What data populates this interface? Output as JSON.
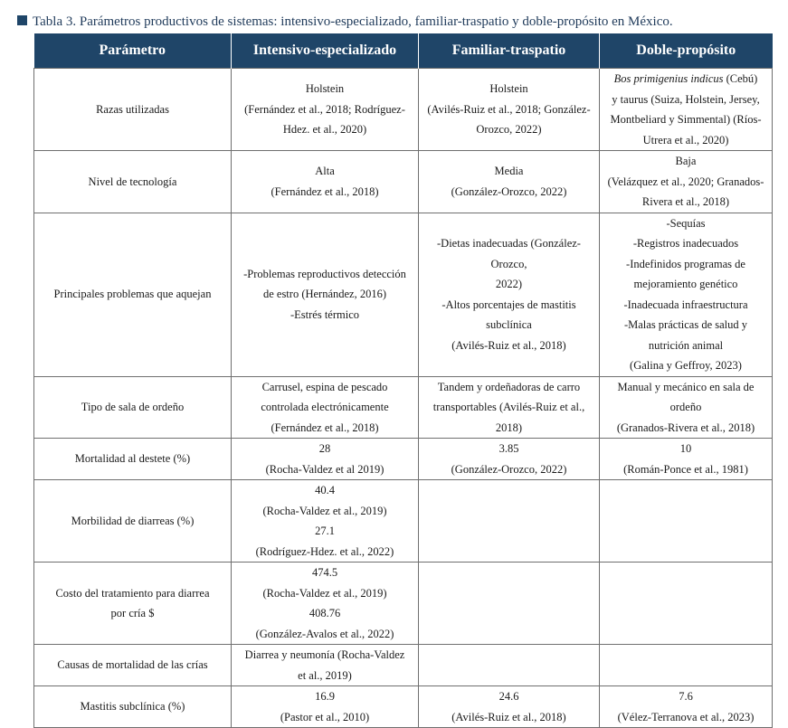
{
  "caption": "Tabla 3.  Parámetros productivos de sistemas: intensivo-especializado, familiar-traspatio y doble-propósito en México.",
  "headers": [
    "Parámetro",
    "Intensivo-especializado",
    "Familiar-traspatio",
    "Doble-propósito"
  ],
  "rows": [
    {
      "param": "Razas utilizadas",
      "c1": [
        "Holstein",
        "(Fernández et al., 2018; Rodríguez-",
        "Hdez. et al., 2020)"
      ],
      "c2": [
        "Holstein",
        "(Avilés-Ruiz et al., 2018; González-",
        "Orozco, 2022)"
      ],
      "c3_italic": "Bos primigenius indicus",
      "c3": [
        " (Cebú)",
        "y taurus (Suiza, Holstein, Jersey,",
        "Montbeliard y Simmental) (Ríos-",
        "Utrera et al., 2020)"
      ]
    },
    {
      "param": "Nivel de tecnología",
      "c1": [
        "Alta",
        "(Fernández et al., 2018)"
      ],
      "c2": [
        "Media",
        "(González-Orozco, 2022)"
      ],
      "c3": [
        "Baja",
        "(Velázquez et al., 2020; Granados-",
        "Rivera et al., 2018)"
      ]
    },
    {
      "param": "Principales problemas que aquejan",
      "c1": [
        "-Problemas reproductivos detección",
        "de estro (Hernández, 2016)",
        "-Estrés térmico"
      ],
      "c2": [
        "-Dietas inadecuadas (González-Orozco,",
        "2022)",
        "-Altos porcentajes de mastitis",
        "subclínica",
        "(Avilés-Ruiz et al., 2018)"
      ],
      "c3": [
        "-Sequías",
        "-Registros inadecuados",
        "-Indefinidos programas de",
        "mejoramiento genético",
        "-Inadecuada infraestructura",
        "-Malas prácticas de salud y",
        "nutrición animal",
        "(Galina y Geffroy, 2023)"
      ]
    },
    {
      "param": "Tipo de sala de ordeño",
      "c1": [
        "Carrusel, espina de pescado",
        "controlada electrónicamente",
        "(Fernández et al., 2018)"
      ],
      "c2": [
        "Tandem y ordeñadoras de carro",
        "transportables (Avilés-Ruiz et al.,",
        "2018)"
      ],
      "c3": [
        "Manual y mecánico en sala de",
        "ordeño",
        "(Granados-Rivera et al., 2018)"
      ]
    },
    {
      "param": "Mortalidad al destete (%)",
      "c1": [
        "28",
        "(Rocha-Valdez et al 2019)"
      ],
      "c2": [
        "3.85",
        "(González-Orozco, 2022)"
      ],
      "c3": [
        "10",
        "(Román-Ponce et al., 1981)"
      ]
    },
    {
      "param": "Morbilidad de diarreas (%)",
      "c1": [
        "40.4",
        "(Rocha-Valdez et al., 2019)",
        "27.1",
        "(Rodríguez-Hdez. et al., 2022)"
      ],
      "c2": [],
      "c3": []
    },
    {
      "param": [
        "Costo del tratamiento para diarrea",
        "por cría $"
      ],
      "c1": [
        "474.5",
        "(Rocha-Valdez et al., 2019)",
        "408.76",
        "(González-Avalos et al., 2022)"
      ],
      "c2": [],
      "c3": []
    },
    {
      "param": "Causas de mortalidad de las crías",
      "c1": [
        "Diarrea y neumonía (Rocha-Valdez",
        "et al., 2019)"
      ],
      "c2": [],
      "c3": []
    },
    {
      "param": "Mastitis subclínica (%)",
      "c1": [
        "16.9",
        "(Pastor et al., 2010)"
      ],
      "c2": [
        "24.6",
        "(Avilés-Ruiz et al., 2018)"
      ],
      "c3": [
        "7.6",
        "(Vélez-Terranova et al., 2023)"
      ]
    }
  ]
}
